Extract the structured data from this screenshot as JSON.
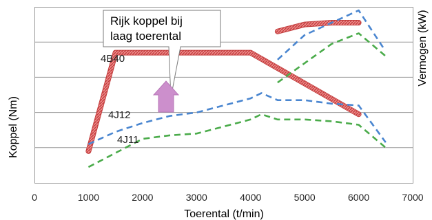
{
  "chart_data": {
    "type": "line",
    "title": "",
    "xlabel": "Toerental (t/min)",
    "ylabel": "Koppel (Nm)",
    "ylabel_right": "Vermogen (kW)",
    "xlim": [
      0,
      7000
    ],
    "xticks": [
      0,
      1000,
      2000,
      3000,
      4000,
      5000,
      6000,
      7000
    ],
    "y_grid_count": 5,
    "grid": true,
    "series": [
      {
        "name": "4B40",
        "kind": "torque",
        "color": "#e06060",
        "x": [
          1000,
          1500,
          4000,
          6000
        ],
        "y": [
          0.18,
          0.74,
          0.74,
          0.39
        ]
      },
      {
        "name": "4J12",
        "kind": "torque",
        "color": "#4a86d0",
        "x": [
          1000,
          1500,
          2000,
          2500,
          3000,
          3500,
          4000,
          4200,
          4500,
          5000,
          5500,
          6000,
          6500
        ],
        "y": [
          0.22,
          0.29,
          0.34,
          0.38,
          0.4,
          0.44,
          0.48,
          0.51,
          0.47,
          0.47,
          0.45,
          0.44,
          0.23
        ]
      },
      {
        "name": "4J11",
        "kind": "torque",
        "color": "#4aab4a",
        "x": [
          1000,
          1500,
          2000,
          2500,
          3000,
          3500,
          4000,
          4200,
          4500,
          5000,
          5500,
          6000,
          6500
        ],
        "y": [
          0.09,
          0.17,
          0.25,
          0.27,
          0.28,
          0.32,
          0.36,
          0.39,
          0.36,
          0.36,
          0.35,
          0.33,
          0.2
        ]
      },
      {
        "name": "",
        "kind": "power",
        "color": "#e06060",
        "x": [
          4500,
          5000,
          5500,
          6000
        ],
        "y": [
          0.86,
          0.9,
          0.91,
          0.91
        ]
      },
      {
        "name": "",
        "kind": "power",
        "color": "#4a86d0",
        "x": [
          4500,
          5000,
          5500,
          6000,
          6450
        ],
        "y": [
          0.7,
          0.84,
          0.91,
          0.98,
          0.77
        ]
      },
      {
        "name": "",
        "kind": "power",
        "color": "#4aab4a",
        "x": [
          4500,
          5000,
          5500,
          6000,
          6500
        ],
        "y": [
          0.57,
          0.68,
          0.79,
          0.85,
          0.72
        ]
      }
    ],
    "annotation": {
      "text_lines": [
        "Rijk koppel bij",
        "laag toerental"
      ]
    }
  }
}
